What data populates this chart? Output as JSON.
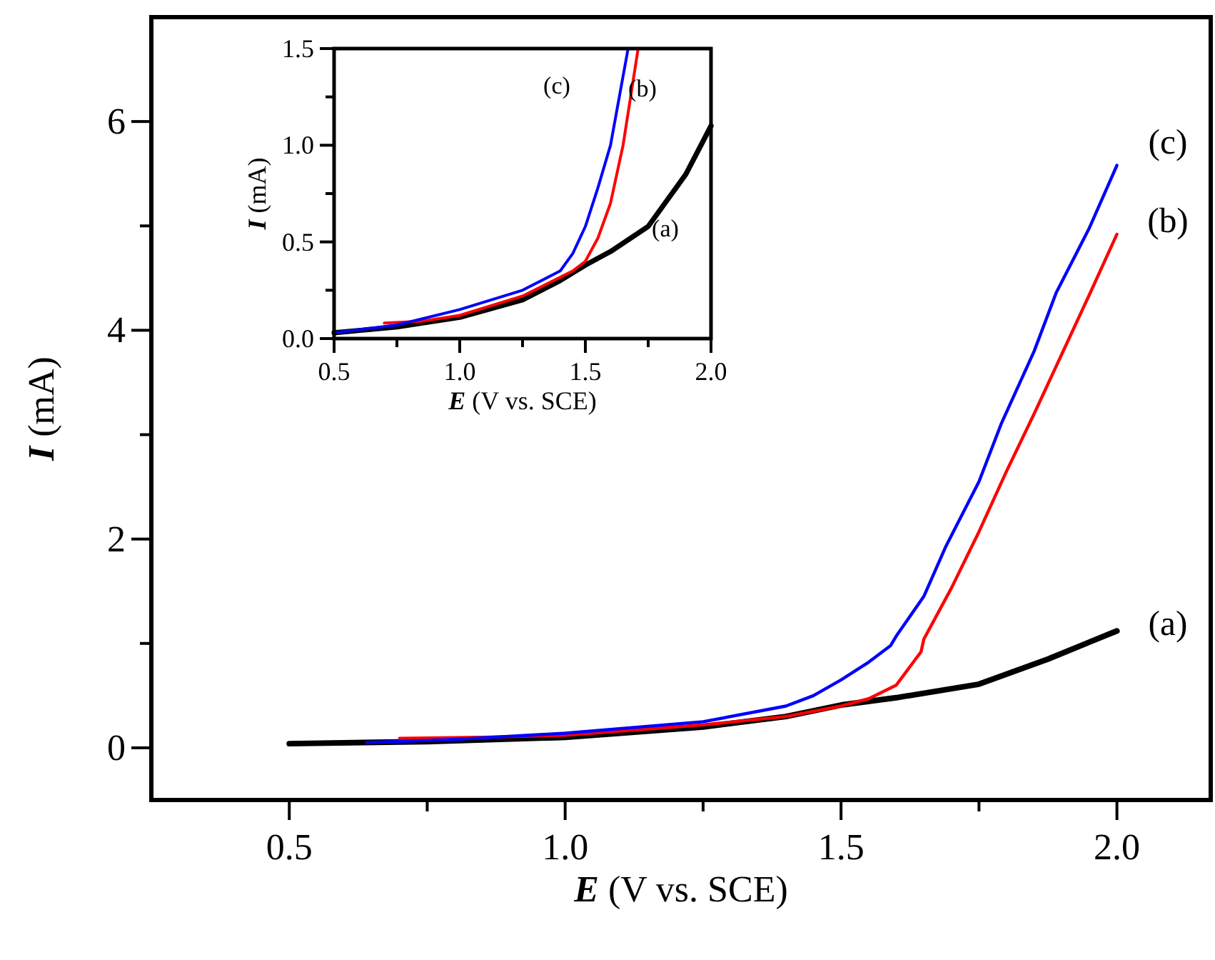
{
  "chart_data": [
    {
      "type": "line",
      "xlabel": "E (V vs. SCE)",
      "ylabel": "I (mA)",
      "xlim": [
        0.25,
        2.17
      ],
      "ylim": [
        -0.5,
        7
      ],
      "xticks": [
        {
          "value": 0.5,
          "label": "0.5"
        },
        {
          "value": 0.75,
          "label": null
        },
        {
          "value": 1.0,
          "label": "1.0"
        },
        {
          "value": 1.25,
          "label": null
        },
        {
          "value": 1.5,
          "label": "1.5"
        },
        {
          "value": 1.75,
          "label": null
        },
        {
          "value": 2.0,
          "label": "2.0"
        }
      ],
      "yticks": [
        0,
        {
          "value": 1,
          "label": null
        },
        2,
        {
          "value": 3,
          "label": null
        },
        4,
        {
          "value": 5,
          "label": null
        },
        6
      ],
      "series": [
        {
          "color": "#000000",
          "x": [
            0.5,
            0.75,
            1.0,
            1.25,
            1.4,
            1.5,
            1.6,
            1.75,
            1.875,
            2.0
          ],
          "values": [
            0.04,
            0.06,
            0.1,
            0.2,
            0.3,
            0.41,
            0.48,
            0.61,
            0.85,
            1.12
          ]
        },
        {
          "color": "#ff0000",
          "x": [
            0.7,
            0.85,
            1.0,
            1.25,
            1.4,
            1.5,
            1.55,
            1.6,
            1.645,
            1.65,
            1.7,
            1.75,
            1.8,
            1.85,
            1.9,
            1.95,
            2.0
          ],
          "values": [
            0.09,
            0.1,
            0.12,
            0.22,
            0.3,
            0.4,
            0.47,
            0.6,
            0.92,
            1.04,
            1.53,
            2.07,
            2.65,
            3.2,
            3.77,
            4.34,
            4.92
          ]
        },
        {
          "color": "#0000ff",
          "x": [
            0.64,
            0.8,
            1.0,
            1.25,
            1.4,
            1.45,
            1.5,
            1.55,
            1.59,
            1.6,
            1.65,
            1.69,
            1.75,
            1.79,
            1.85,
            1.89,
            1.95,
            2.0
          ],
          "values": [
            0.05,
            0.08,
            0.14,
            0.25,
            0.4,
            0.5,
            0.65,
            0.82,
            0.98,
            1.07,
            1.45,
            1.93,
            2.55,
            3.1,
            3.8,
            4.36,
            4.98,
            5.58
          ]
        }
      ],
      "annotations": [
        "(c)",
        "(b)",
        "(a)"
      ]
    },
    {
      "type": "line",
      "xlabel": "E (V vs. SCE)",
      "ylabel": "I (mA)",
      "xlim": [
        0.5,
        2.0
      ],
      "ylim": [
        0,
        1.5
      ],
      "xticks": [
        {
          "value": 0.5,
          "label": "0.5"
        },
        {
          "value": 0.75,
          "label": null
        },
        {
          "value": 1.0,
          "label": "1.0"
        },
        {
          "value": 1.25,
          "label": null
        },
        {
          "value": 1.5,
          "label": "1.5"
        },
        {
          "value": 1.75,
          "label": null
        },
        {
          "value": 2.0,
          "label": "2.0"
        }
      ],
      "yticks": [
        {
          "value": 0,
          "label": "0.0"
        },
        {
          "value": 0.25,
          "label": null
        },
        0.5,
        {
          "value": 0.75,
          "label": null
        },
        {
          "value": 1.0,
          "label": "1.0"
        },
        {
          "value": 1.25,
          "label": null
        },
        1.5
      ],
      "series": [
        {
          "color": "#000000",
          "x": [
            0.5,
            0.75,
            1.0,
            1.25,
            1.4,
            1.5,
            1.6,
            1.75,
            1.9,
            2.0
          ],
          "values": [
            0.03,
            0.06,
            0.11,
            0.2,
            0.3,
            0.38,
            0.45,
            0.58,
            0.85,
            1.1
          ]
        },
        {
          "color": "#ff0000",
          "x": [
            0.7,
            0.85,
            1.0,
            1.25,
            1.45,
            1.5,
            1.55,
            1.6,
            1.65,
            1.71
          ],
          "values": [
            0.08,
            0.09,
            0.12,
            0.22,
            0.35,
            0.4,
            0.52,
            0.7,
            1.0,
            1.5
          ]
        },
        {
          "color": "#0000ff",
          "x": [
            0.5,
            0.75,
            1.0,
            1.25,
            1.4,
            1.45,
            1.5,
            1.55,
            1.6,
            1.67
          ],
          "values": [
            0.03,
            0.07,
            0.15,
            0.25,
            0.35,
            0.44,
            0.58,
            0.78,
            1.0,
            1.5
          ]
        }
      ],
      "annotations": [
        "(c)",
        "(b)",
        "(a)"
      ]
    }
  ]
}
